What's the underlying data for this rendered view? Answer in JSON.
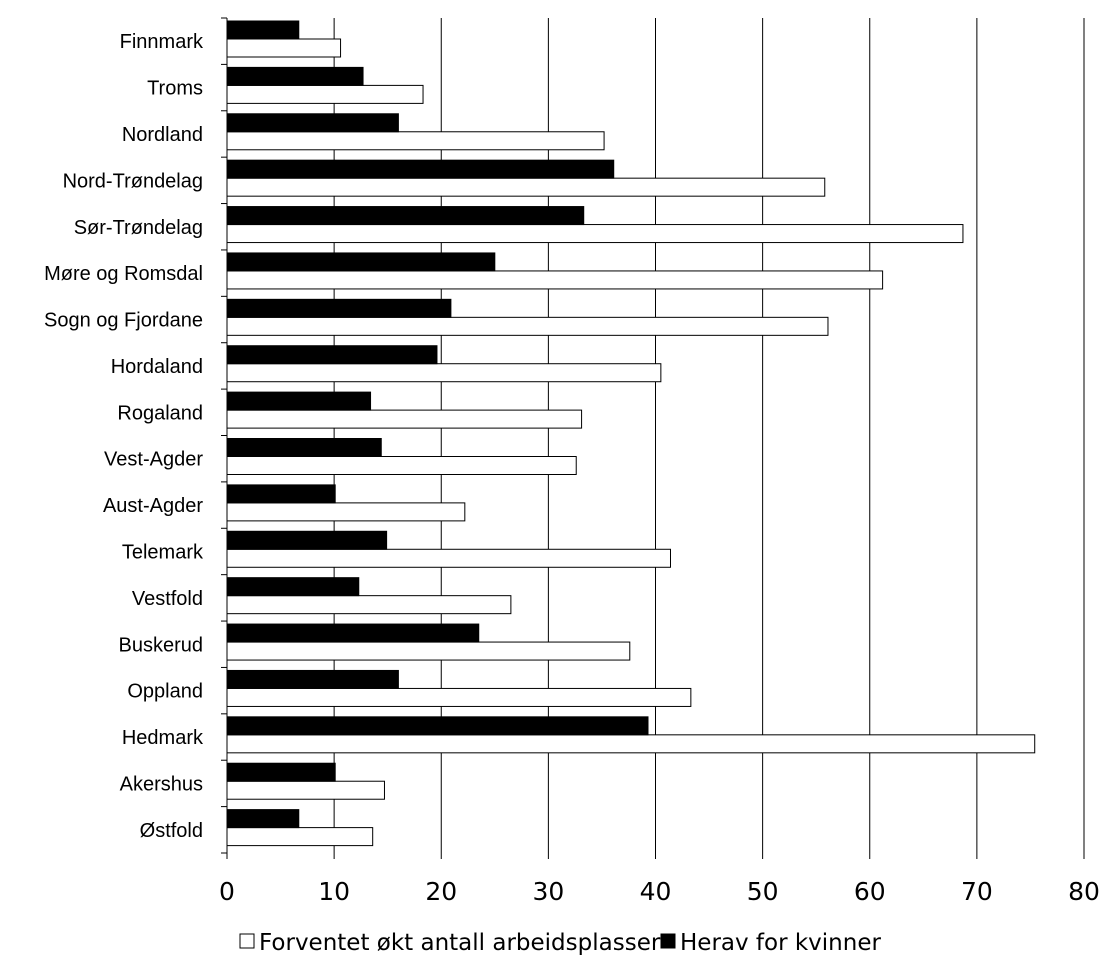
{
  "chart_data": {
    "type": "bar",
    "orientation": "horizontal",
    "title": "",
    "xlabel": "",
    "ylabel": "",
    "categories": [
      "Østfold",
      "Akershus",
      "Hedmark",
      "Oppland",
      "Buskerud",
      "Vestfold",
      "Telemark",
      "Aust-Agder",
      "Vest-Agder",
      "Rogaland",
      "Hordaland",
      "Sogn og Fjordane",
      "Møre og Romsdal",
      "Sør-Trøndelag",
      "Nord-Trøndelag",
      "Nordland",
      "Troms",
      "Finnmark"
    ],
    "series": [
      {
        "name": "Forventet økt antall arbeidsplasser",
        "color": "#ffffff",
        "values": [
          13.6,
          14.7,
          75.4,
          43.3,
          37.6,
          26.5,
          41.4,
          22.2,
          32.6,
          33.1,
          40.5,
          56.1,
          61.2,
          68.7,
          55.8,
          35.2,
          18.3,
          10.6
        ]
      },
      {
        "name": "Herav for kvinner",
        "color": "#000000",
        "values": [
          6.7,
          10.1,
          39.3,
          16.0,
          23.5,
          12.3,
          14.9,
          10.1,
          14.4,
          13.4,
          19.6,
          20.9,
          25.0,
          33.3,
          36.1,
          16.0,
          12.7,
          6.7
        ]
      }
    ],
    "xlim": [
      0,
      80
    ],
    "xticks": [
      "0",
      "10",
      "20",
      "30",
      "40",
      "50",
      "60",
      "70",
      "80"
    ],
    "grid": true,
    "legend_position": "bottom"
  }
}
